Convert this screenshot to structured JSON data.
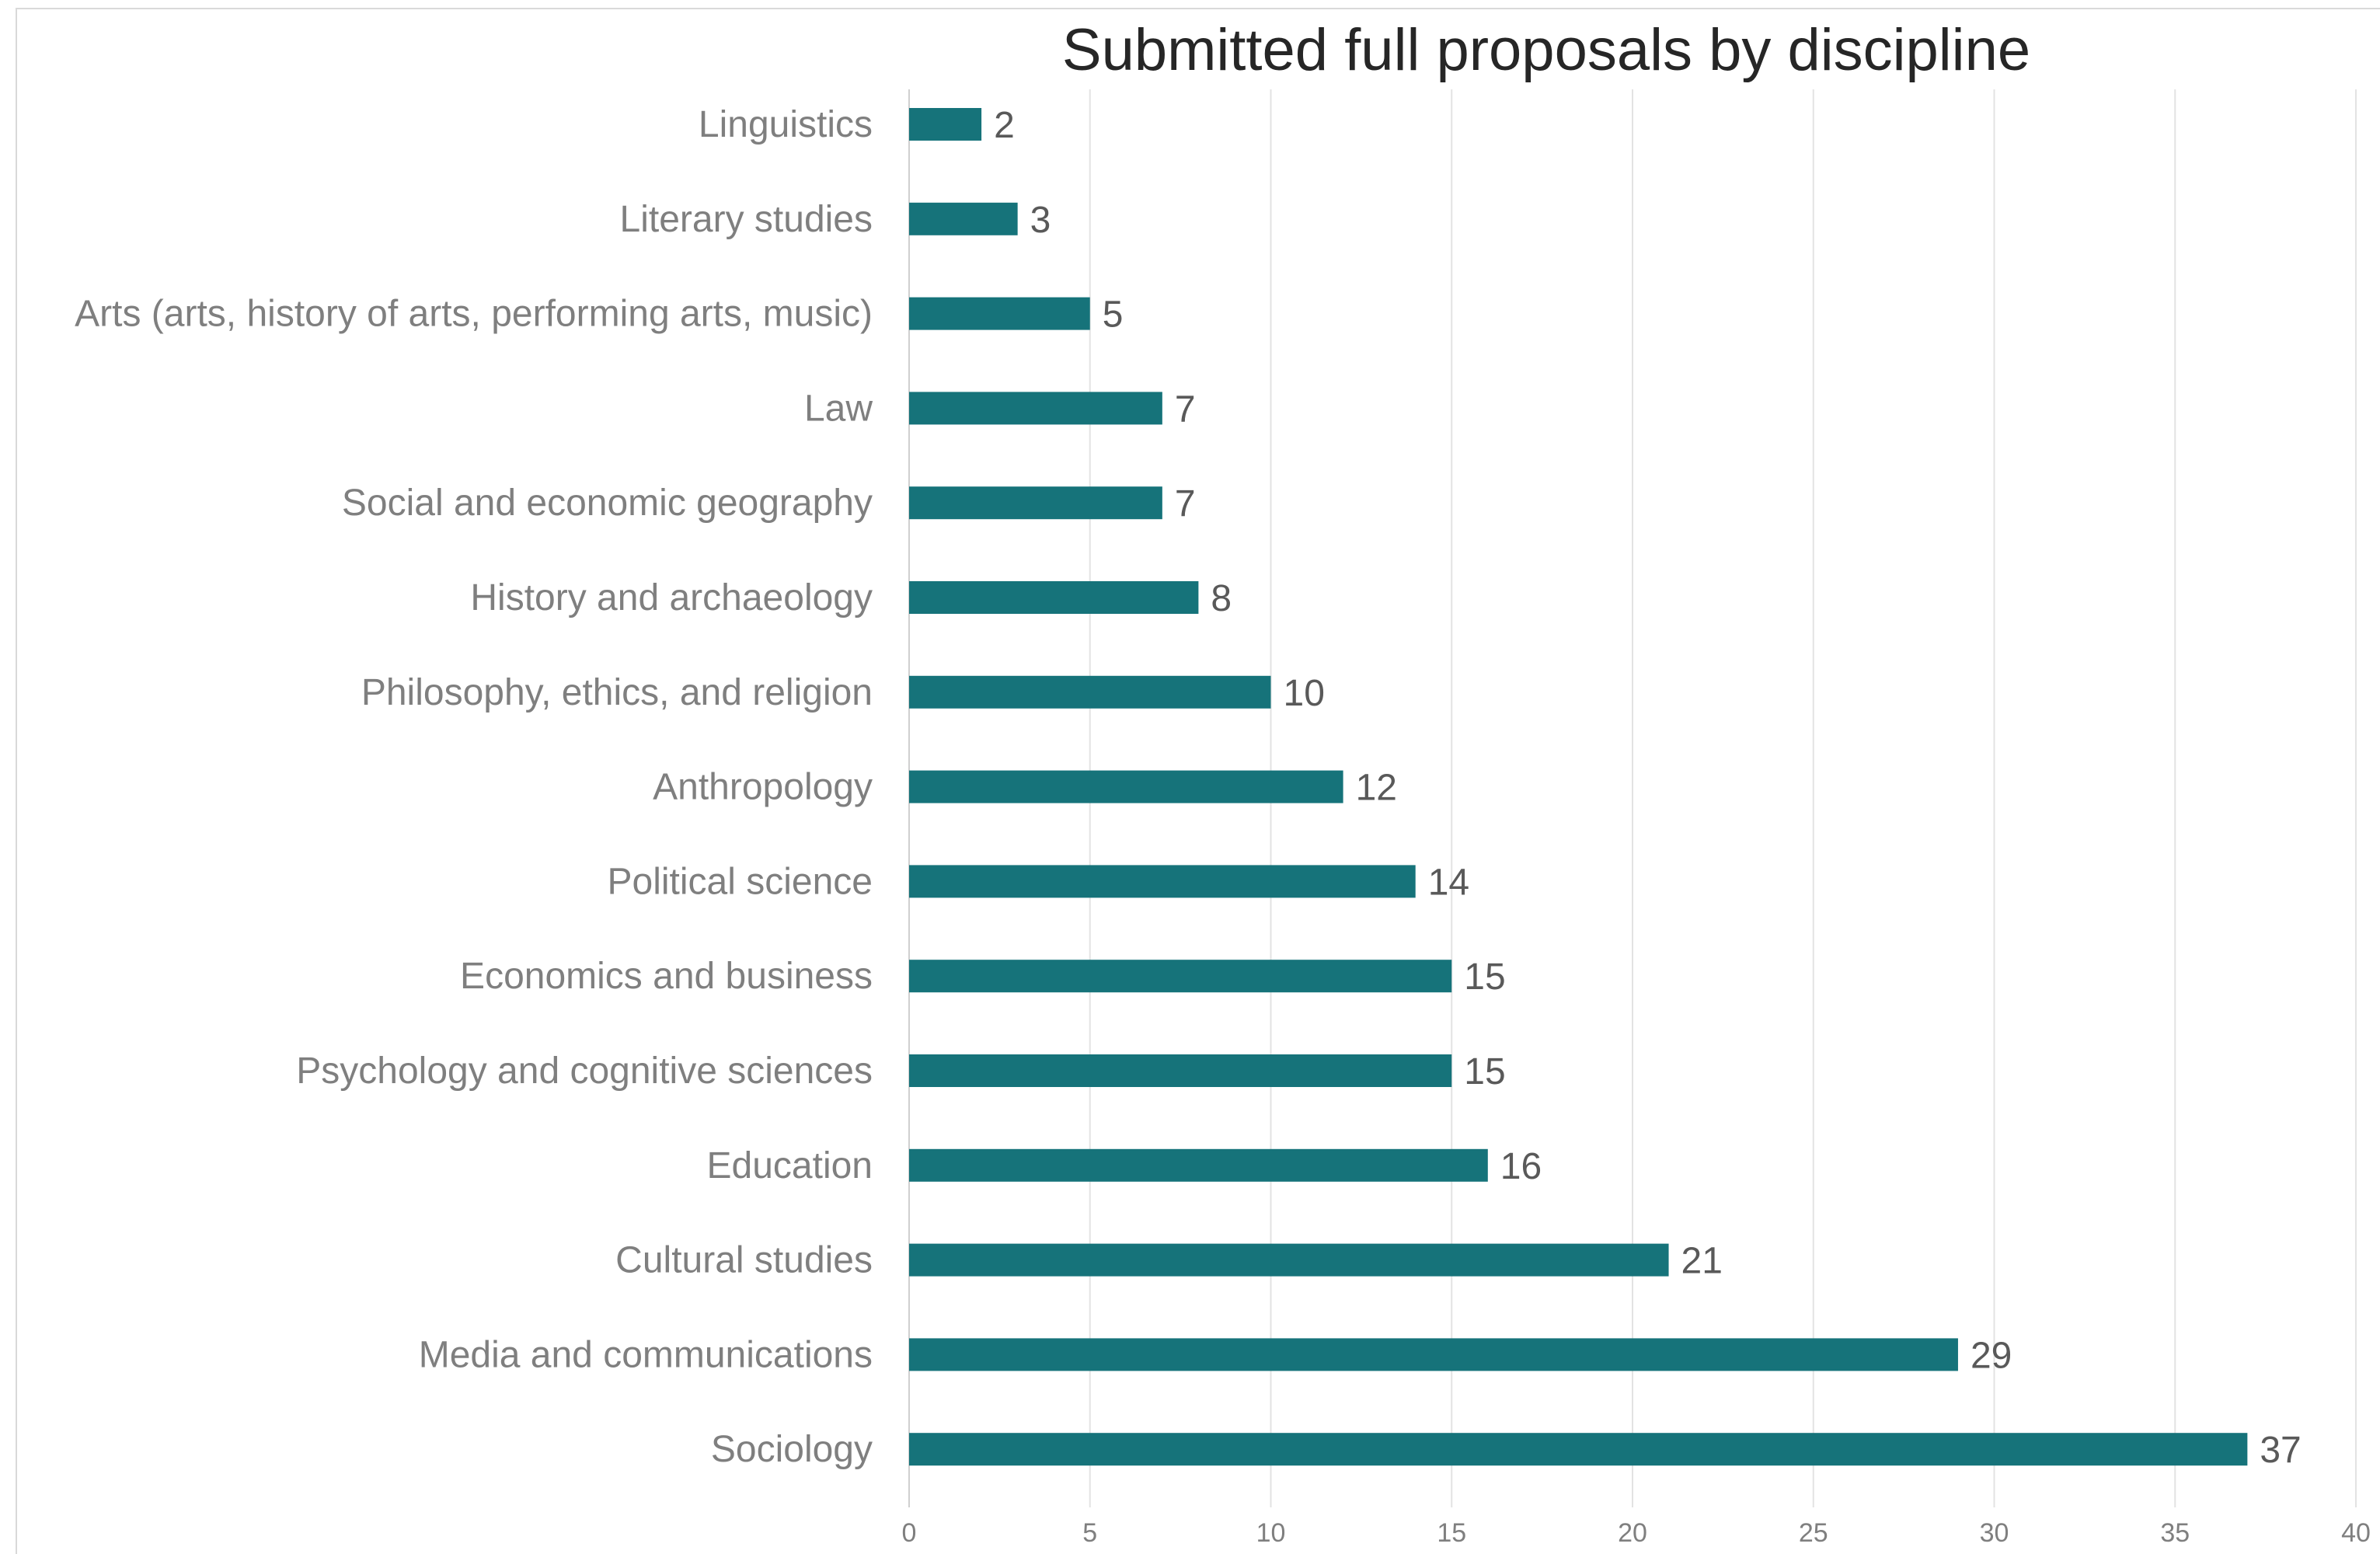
{
  "chart_data": {
    "type": "bar",
    "orientation": "horizontal",
    "title": "Submitted full proposals by discipline",
    "categories": [
      "Linguistics",
      "Literary studies",
      "Arts (arts, history of arts, performing arts, music)",
      "Law",
      "Social and economic geography",
      "History and archaeology",
      "Philosophy, ethics, and religion",
      "Anthropology",
      "Political science",
      "Economics and business",
      "Psychology and cognitive sciences",
      "Education",
      "Cultural studies",
      "Media and communications",
      "Sociology"
    ],
    "values": [
      2,
      3,
      5,
      7,
      7,
      8,
      10,
      12,
      14,
      15,
      15,
      16,
      21,
      29,
      37
    ],
    "xlim": [
      0,
      40
    ],
    "xticks": [
      0,
      5,
      10,
      15,
      20,
      25,
      30,
      35,
      40
    ],
    "grid": true,
    "legend": "none",
    "bar_color": "#16737a"
  }
}
